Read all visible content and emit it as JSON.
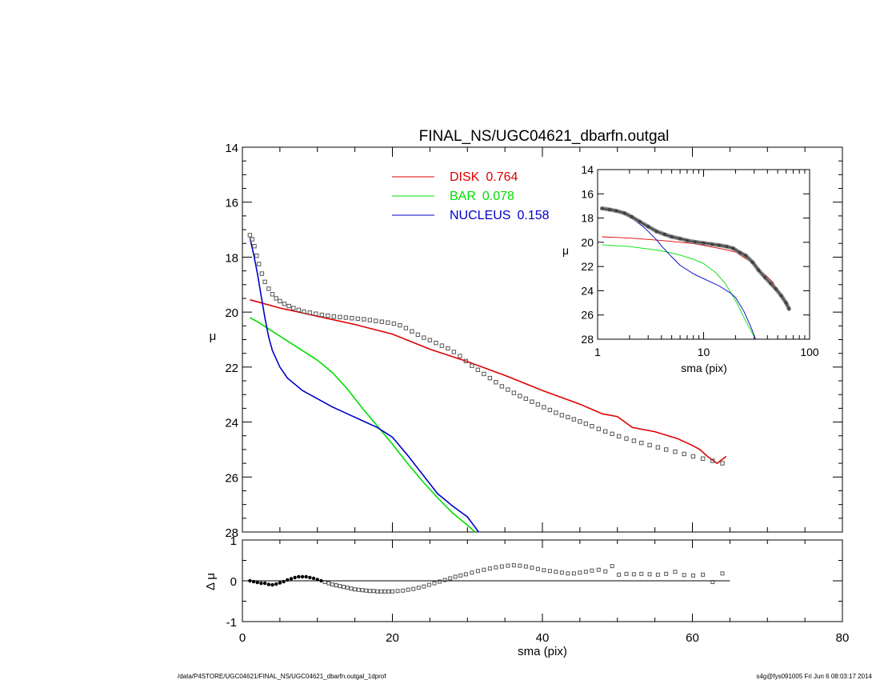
{
  "title": "FINAL_NS/UGC04621_dbarfn.outgal",
  "footer": {
    "left": "/data/P4STORE/UGC04621/FINAL_NS/UGC04621_dbarfn.outgal_1dprof",
    "right": "s4g@fys091005  Fri Jun  6 08:03:17 2014"
  },
  "colors": {
    "disk": "#e00000",
    "bar": "#00e000",
    "nucleus": "#0000c8",
    "data": "#555555",
    "axis": "#000000"
  },
  "chart_data": [
    {
      "panel": "main",
      "type": "line",
      "xlabel": "",
      "ylabel": "μ",
      "xlim": [
        0,
        80
      ],
      "ylim": [
        28,
        14
      ],
      "y_inverted": true,
      "yticks": [
        14,
        16,
        18,
        20,
        22,
        24,
        26,
        28
      ],
      "legend": {
        "placement": "top-center",
        "entries": [
          {
            "label": "DISK",
            "value": "0.764",
            "color": "#e00000"
          },
          {
            "label": "BAR",
            "value": "0.078",
            "color": "#00e000"
          },
          {
            "label": "NUCLEUS",
            "value": "0.158",
            "color": "#0000c8"
          }
        ]
      },
      "series": [
        {
          "name": "DISK",
          "color": "#e00000",
          "x": [
            1,
            5,
            10,
            15,
            20,
            25,
            30,
            35,
            40,
            45,
            48,
            50,
            52,
            55,
            58,
            60,
            61,
            62,
            63.3,
            64.5
          ],
          "y": [
            19.55,
            19.85,
            20.15,
            20.45,
            20.8,
            21.35,
            21.8,
            22.3,
            22.85,
            23.35,
            23.7,
            23.8,
            24.2,
            24.35,
            24.6,
            24.85,
            25.0,
            25.25,
            25.5,
            25.25
          ]
        },
        {
          "name": "BAR",
          "color": "#00e000",
          "x": [
            1,
            2,
            4,
            6,
            8,
            10,
            12,
            14,
            16,
            18,
            20,
            22,
            24,
            26,
            28,
            30,
            31
          ],
          "y": [
            20.2,
            20.35,
            20.7,
            21.05,
            21.4,
            21.75,
            22.2,
            22.8,
            23.5,
            24.15,
            24.8,
            25.5,
            26.15,
            26.75,
            27.3,
            27.75,
            28.0
          ]
        },
        {
          "name": "NUCLEUS",
          "color": "#0000c8",
          "x": [
            1,
            1.5,
            2,
            2.5,
            3,
            3.5,
            4,
            5,
            6,
            8,
            10,
            12,
            14,
            16,
            18,
            20,
            22,
            24,
            26,
            28,
            30,
            31.5
          ],
          "y": [
            17.3,
            17.9,
            18.6,
            19.4,
            20.2,
            20.9,
            21.4,
            22.0,
            22.4,
            22.85,
            23.15,
            23.45,
            23.7,
            23.95,
            24.2,
            24.55,
            25.2,
            25.9,
            26.6,
            27.05,
            27.45,
            28.0
          ]
        },
        {
          "name": "data",
          "color": "#555555",
          "marker": "square",
          "x": [
            1,
            1.3,
            1.6,
            1.9,
            2.2,
            2.6,
            3,
            3.5,
            4,
            4.5,
            5,
            5.6,
            6.2,
            6.8,
            7.5,
            8.2,
            9,
            9.8,
            10.6,
            11.4,
            12.2,
            13,
            13.8,
            14.6,
            15.4,
            16.2,
            17,
            17.8,
            18.6,
            19.4,
            20.2,
            21,
            21.8,
            22.6,
            23.4,
            24.2,
            25,
            25.8,
            26.6,
            27.4,
            28.2,
            29,
            29.8,
            30.6,
            31.4,
            32.2,
            33,
            33.8,
            34.6,
            35.4,
            36.2,
            37,
            37.8,
            38.6,
            39.4,
            40.2,
            41,
            41.8,
            42.6,
            43.4,
            44.2,
            45,
            45.8,
            46.6,
            47.5,
            48.4,
            49.3,
            50.2,
            51.2,
            52.2,
            53.2,
            54.3,
            55.4,
            56.5,
            57.7,
            58.9,
            60.1,
            61.4,
            62.7,
            64
          ],
          "y": [
            17.2,
            17.35,
            17.6,
            17.95,
            18.25,
            18.6,
            18.9,
            19.15,
            19.35,
            19.5,
            19.6,
            19.7,
            19.78,
            19.85,
            19.92,
            19.98,
            20.02,
            20.06,
            20.1,
            20.13,
            20.16,
            20.18,
            20.2,
            20.22,
            20.24,
            20.26,
            20.29,
            20.32,
            20.35,
            20.38,
            20.42,
            20.48,
            20.58,
            20.7,
            20.82,
            20.93,
            21.02,
            21.12,
            21.22,
            21.32,
            21.45,
            21.6,
            21.78,
            21.95,
            22.1,
            22.25,
            22.4,
            22.55,
            22.7,
            22.82,
            22.94,
            23.05,
            23.15,
            23.26,
            23.36,
            23.46,
            23.56,
            23.66,
            23.75,
            23.82,
            23.9,
            23.98,
            24.06,
            24.15,
            24.25,
            24.34,
            24.43,
            24.52,
            24.6,
            24.68,
            24.76,
            24.84,
            24.92,
            25.0,
            25.08,
            25.16,
            25.25,
            25.33,
            25.41,
            25.5
          ]
        }
      ]
    },
    {
      "panel": "residual",
      "type": "scatter",
      "xlabel": "sma (pix)",
      "ylabel": "Δ μ",
      "xlim": [
        0,
        80
      ],
      "ylim": [
        -1,
        1
      ],
      "xticks": [
        0,
        20,
        40,
        60,
        80
      ],
      "yticks": [
        -1,
        0,
        1
      ],
      "zero_line": true,
      "series": [
        {
          "name": "residual",
          "color": "#555555",
          "marker": "square",
          "x": [
            1,
            1.5,
            2,
            2.5,
            3,
            3.5,
            4,
            4.5,
            5,
            5.5,
            6,
            6.5,
            7,
            7.5,
            8,
            8.5,
            9,
            9.5,
            10,
            10.5,
            11,
            11.5,
            12,
            12.5,
            13,
            13.5,
            14,
            14.5,
            15,
            15.5,
            16,
            16.5,
            17,
            17.5,
            18,
            18.5,
            19,
            19.5,
            20,
            20.7,
            21.4,
            22.1,
            22.8,
            23.5,
            24.2,
            24.9,
            25.6,
            26.3,
            27,
            27.7,
            28.4,
            29.1,
            29.8,
            30.6,
            31.4,
            32.2,
            33,
            33.8,
            34.6,
            35.4,
            36.2,
            37,
            37.8,
            38.6,
            39.4,
            40.2,
            41,
            41.8,
            42.6,
            43.4,
            44.2,
            45,
            45.8,
            46.6,
            47.5,
            48.4,
            49.3,
            50.2,
            51.2,
            52.2,
            53.2,
            54.3,
            55.4,
            56.5,
            57.7,
            58.9,
            60.1,
            61.4,
            62.7,
            64
          ],
          "y": [
            0.0,
            -0.02,
            -0.04,
            -0.06,
            -0.06,
            -0.09,
            -0.1,
            -0.08,
            -0.05,
            -0.02,
            0.02,
            0.05,
            0.08,
            0.1,
            0.1,
            0.1,
            0.08,
            0.06,
            0.03,
            0.0,
            -0.03,
            -0.06,
            -0.09,
            -0.11,
            -0.13,
            -0.15,
            -0.17,
            -0.19,
            -0.21,
            -0.22,
            -0.23,
            -0.24,
            -0.25,
            -0.25,
            -0.26,
            -0.26,
            -0.26,
            -0.26,
            -0.26,
            -0.25,
            -0.24,
            -0.22,
            -0.2,
            -0.17,
            -0.14,
            -0.1,
            -0.06,
            -0.02,
            0.02,
            0.06,
            0.1,
            0.13,
            0.16,
            0.2,
            0.24,
            0.27,
            0.3,
            0.33,
            0.35,
            0.37,
            0.38,
            0.37,
            0.35,
            0.32,
            0.29,
            0.26,
            0.24,
            0.22,
            0.2,
            0.18,
            0.18,
            0.2,
            0.22,
            0.25,
            0.27,
            0.23,
            0.36,
            0.15,
            0.17,
            0.16,
            0.17,
            0.16,
            0.15,
            0.17,
            0.22,
            0.14,
            0.13,
            0.15,
            -0.03,
            0.18
          ]
        }
      ]
    },
    {
      "panel": "inset",
      "type": "line",
      "xlabel": "sma (pix)",
      "ylabel": "μ",
      "x_scale": "log",
      "xlim": [
        1,
        100
      ],
      "ylim": [
        28,
        14
      ],
      "xticks": [
        1,
        10,
        100
      ],
      "yticks": [
        14,
        16,
        18,
        20,
        22,
        24,
        26,
        28
      ],
      "series": [
        {
          "name": "DISK",
          "color": "#e00000",
          "x": [
            1.1,
            2,
            4,
            8,
            15,
            20,
            30,
            45,
            64
          ],
          "y": [
            19.55,
            19.65,
            19.85,
            20.1,
            20.55,
            20.8,
            21.8,
            23.3,
            25.5
          ]
        },
        {
          "name": "BAR",
          "color": "#00e000",
          "x": [
            1.1,
            2,
            3,
            4,
            6,
            8,
            10,
            13,
            16,
            20,
            25,
            30
          ],
          "y": [
            20.2,
            20.35,
            20.55,
            20.7,
            21.05,
            21.4,
            21.75,
            22.5,
            23.4,
            24.8,
            26.5,
            27.8
          ]
        },
        {
          "name": "NUCLEUS",
          "color": "#0000c8",
          "x": [
            1.1,
            1.6,
            2,
            2.6,
            3,
            3.6,
            4,
            5,
            6,
            8,
            10,
            14,
            18,
            20,
            24,
            28,
            31
          ],
          "y": [
            17.2,
            17.4,
            17.9,
            18.6,
            19.1,
            19.8,
            20.3,
            21.2,
            21.9,
            22.6,
            23.0,
            23.6,
            24.2,
            24.55,
            25.7,
            27.0,
            28.0
          ]
        },
        {
          "name": "data",
          "color": "#555555",
          "marker": "circle",
          "x": [
            1.1,
            1.3,
            1.5,
            1.8,
            2.1,
            2.5,
            3,
            3.6,
            4.3,
            5,
            6,
            7,
            8.3,
            10,
            12,
            14,
            16.5,
            19,
            22,
            25,
            29,
            33,
            38,
            43,
            48,
            54,
            60,
            64
          ],
          "y": [
            17.2,
            17.3,
            17.4,
            17.6,
            17.9,
            18.3,
            18.7,
            19.1,
            19.35,
            19.55,
            19.7,
            19.85,
            19.97,
            20.06,
            20.16,
            20.24,
            20.35,
            20.5,
            20.85,
            21.1,
            21.65,
            22.3,
            22.9,
            23.4,
            23.85,
            24.4,
            25.0,
            25.5
          ]
        }
      ]
    }
  ]
}
